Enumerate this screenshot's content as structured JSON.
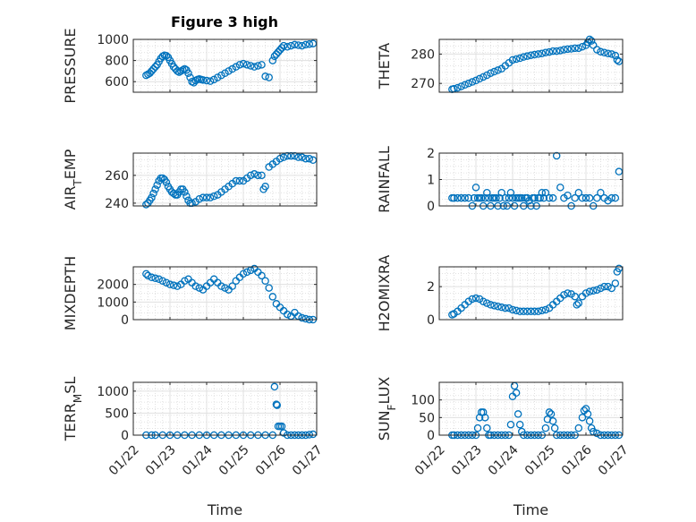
{
  "figure_title": "Figure 3 high",
  "x_ticks": [
    "01/22",
    "01/23",
    "01/24",
    "01/25",
    "01/26",
    "01/27"
  ],
  "marker_color": "#0072BD",
  "chart_data": [
    {
      "type": "scatter",
      "ylabel": "PRESSURE",
      "ylim": [
        500,
        1000
      ],
      "yticks": [
        600,
        800,
        1000
      ],
      "xlabel": "",
      "xlim": [
        0,
        5
      ],
      "grid": true,
      "x": [
        0.35,
        0.4,
        0.45,
        0.5,
        0.55,
        0.6,
        0.65,
        0.7,
        0.75,
        0.8,
        0.85,
        0.9,
        0.95,
        1.0,
        1.05,
        1.1,
        1.15,
        1.2,
        1.25,
        1.3,
        1.35,
        1.4,
        1.45,
        1.5,
        1.55,
        1.6,
        1.65,
        1.7,
        1.75,
        1.8,
        1.85,
        1.9,
        2.0,
        2.1,
        2.2,
        2.3,
        2.4,
        2.5,
        2.6,
        2.7,
        2.8,
        2.9,
        3.0,
        3.1,
        3.2,
        3.3,
        3.4,
        3.5,
        3.6,
        3.7,
        3.8,
        3.85,
        3.9,
        3.95,
        4.0,
        4.05,
        4.1,
        4.2,
        4.3,
        4.4,
        4.5,
        4.6,
        4.7,
        4.8,
        4.9
      ],
      "y": [
        660,
        670,
        680,
        700,
        720,
        740,
        760,
        790,
        820,
        840,
        850,
        845,
        830,
        800,
        770,
        740,
        720,
        700,
        690,
        700,
        710,
        720,
        710,
        680,
        640,
        600,
        590,
        610,
        620,
        625,
        620,
        615,
        610,
        605,
        620,
        640,
        660,
        680,
        700,
        720,
        740,
        760,
        770,
        760,
        750,
        740,
        750,
        760,
        650,
        640,
        800,
        840,
        860,
        880,
        900,
        920,
        940,
        930,
        940,
        950,
        945,
        940,
        950,
        955,
        960
      ]
    },
    {
      "type": "scatter",
      "ylabel": "THETA",
      "ylim": [
        267,
        285
      ],
      "yticks": [
        270,
        280
      ],
      "xlabel": "",
      "xlim": [
        0,
        5
      ],
      "grid": true,
      "x": [
        0.35,
        0.4,
        0.5,
        0.6,
        0.7,
        0.8,
        0.9,
        1.0,
        1.1,
        1.2,
        1.3,
        1.4,
        1.5,
        1.6,
        1.7,
        1.8,
        1.9,
        2.0,
        2.1,
        2.2,
        2.3,
        2.4,
        2.5,
        2.6,
        2.7,
        2.8,
        2.9,
        3.0,
        3.1,
        3.2,
        3.3,
        3.4,
        3.5,
        3.6,
        3.7,
        3.8,
        3.9,
        4.0,
        4.05,
        4.1,
        4.15,
        4.2,
        4.3,
        4.4,
        4.5,
        4.6,
        4.7,
        4.8,
        4.85,
        4.9
      ],
      "y": [
        268,
        268.2,
        268.5,
        269,
        269.5,
        270,
        270.5,
        271,
        271.6,
        272.2,
        272.8,
        273.5,
        274,
        274.5,
        275,
        276,
        277,
        278,
        278.3,
        278.6,
        279,
        279.3,
        279.6,
        279.8,
        280,
        280.2,
        280.5,
        280.7,
        281,
        281,
        281.2,
        281.5,
        281.7,
        281.8,
        282,
        282,
        282.5,
        283,
        284,
        285,
        284.5,
        283,
        281.5,
        280.8,
        280.5,
        280.2,
        280,
        279.5,
        278,
        277.5
      ]
    },
    {
      "type": "scatter",
      "ylabel": "AIR",
      "ylabel_sub": "T",
      "ylabel_rest": "EMP",
      "ylim": [
        238,
        276
      ],
      "yticks": [
        240,
        260
      ],
      "xlabel": "",
      "xlim": [
        0,
        5
      ],
      "grid": true,
      "x": [
        0.35,
        0.4,
        0.45,
        0.5,
        0.55,
        0.6,
        0.65,
        0.7,
        0.75,
        0.8,
        0.85,
        0.9,
        0.95,
        1.0,
        1.05,
        1.1,
        1.15,
        1.2,
        1.25,
        1.3,
        1.35,
        1.4,
        1.45,
        1.5,
        1.55,
        1.6,
        1.7,
        1.8,
        1.9,
        2.0,
        2.1,
        2.2,
        2.3,
        2.4,
        2.5,
        2.6,
        2.7,
        2.8,
        2.9,
        3.0,
        3.1,
        3.2,
        3.3,
        3.4,
        3.5,
        3.55,
        3.6,
        3.7,
        3.8,
        3.9,
        4.0,
        4.1,
        4.2,
        4.3,
        4.4,
        4.5,
        4.6,
        4.7,
        4.8,
        4.9
      ],
      "y": [
        239,
        240,
        242,
        244,
        247,
        250,
        253,
        256,
        258,
        258,
        257,
        255,
        252,
        250,
        248,
        247,
        246,
        246,
        248,
        250,
        250,
        248,
        245,
        242,
        240,
        240,
        241,
        243,
        244,
        244,
        244,
        245,
        246,
        248,
        250,
        252,
        254,
        256,
        256,
        256,
        258,
        260,
        261,
        260,
        260,
        250,
        252,
        266,
        268,
        270,
        272,
        273,
        274,
        274,
        274,
        273,
        273,
        272,
        272,
        271
      ]
    },
    {
      "type": "scatter",
      "ylabel": "RAINFALL",
      "ylim": [
        0,
        2
      ],
      "yticks": [
        0,
        1,
        2
      ],
      "xlabel": "",
      "xlim": [
        0,
        5
      ],
      "grid": true,
      "x": [
        0.35,
        0.4,
        0.5,
        0.6,
        0.7,
        0.8,
        0.9,
        0.95,
        1.0,
        1.05,
        1.1,
        1.15,
        1.2,
        1.25,
        1.3,
        1.35,
        1.4,
        1.45,
        1.5,
        1.55,
        1.6,
        1.65,
        1.7,
        1.75,
        1.8,
        1.85,
        1.9,
        1.95,
        2.0,
        2.05,
        2.1,
        2.15,
        2.2,
        2.25,
        2.3,
        2.35,
        2.4,
        2.45,
        2.5,
        2.55,
        2.6,
        2.65,
        2.7,
        2.75,
        2.8,
        2.85,
        2.9,
        3.0,
        3.1,
        3.2,
        3.3,
        3.4,
        3.5,
        3.6,
        3.7,
        3.8,
        3.9,
        4.0,
        4.1,
        4.2,
        4.3,
        4.4,
        4.5,
        4.6,
        4.7,
        4.8,
        4.9
      ],
      "y": [
        0.3,
        0.3,
        0.3,
        0.3,
        0.3,
        0.3,
        0,
        0.3,
        0.7,
        0.3,
        0.3,
        0.3,
        0,
        0.3,
        0.5,
        0.3,
        0,
        0.3,
        0.3,
        0.3,
        0,
        0.3,
        0.5,
        0,
        0.3,
        0,
        0.3,
        0.5,
        0.3,
        0,
        0.3,
        0.3,
        0.3,
        0.3,
        0,
        0.3,
        0.3,
        0.2,
        0,
        0.3,
        0.3,
        0,
        0.3,
        0.3,
        0.5,
        0.3,
        0.5,
        0.3,
        0.3,
        1.9,
        0.7,
        0.3,
        0.4,
        0,
        0.3,
        0.5,
        0.3,
        0.3,
        0.3,
        0,
        0.3,
        0.5,
        0.3,
        0.2,
        0.3,
        0.3,
        1.3
      ]
    },
    {
      "type": "scatter",
      "ylabel": "MIXDEPTH",
      "ylim": [
        0,
        3000
      ],
      "yticks": [
        0,
        1000,
        2000
      ],
      "xlabel": "",
      "xlim": [
        0,
        5
      ],
      "grid": true,
      "x": [
        0.35,
        0.4,
        0.5,
        0.6,
        0.7,
        0.8,
        0.9,
        1.0,
        1.1,
        1.2,
        1.3,
        1.4,
        1.5,
        1.6,
        1.7,
        1.8,
        1.9,
        2.0,
        2.1,
        2.2,
        2.3,
        2.4,
        2.5,
        2.6,
        2.7,
        2.8,
        2.9,
        3.0,
        3.1,
        3.2,
        3.3,
        3.4,
        3.5,
        3.6,
        3.7,
        3.8,
        3.9,
        4.0,
        4.1,
        4.2,
        4.3,
        4.4,
        4.5,
        4.6,
        4.7,
        4.8,
        4.9
      ],
      "y": [
        2600,
        2500,
        2400,
        2350,
        2300,
        2200,
        2100,
        2000,
        1950,
        1900,
        2000,
        2200,
        2300,
        2100,
        1900,
        1800,
        1700,
        1900,
        2100,
        2300,
        2100,
        1900,
        1800,
        1700,
        1900,
        2200,
        2400,
        2600,
        2700,
        2800,
        2900,
        2700,
        2500,
        2200,
        1800,
        1300,
        900,
        700,
        500,
        300,
        200,
        400,
        200,
        100,
        50,
        0,
        0
      ]
    },
    {
      "type": "scatter",
      "ylabel": "H2OMIXRA",
      "ylim": [
        0,
        3.2
      ],
      "yticks": [
        0,
        2
      ],
      "xlabel": "",
      "xlim": [
        0,
        5
      ],
      "grid": true,
      "x": [
        0.35,
        0.4,
        0.5,
        0.6,
        0.7,
        0.8,
        0.9,
        1.0,
        1.1,
        1.2,
        1.3,
        1.4,
        1.5,
        1.6,
        1.7,
        1.8,
        1.9,
        2.0,
        2.1,
        2.2,
        2.3,
        2.4,
        2.5,
        2.6,
        2.7,
        2.8,
        2.9,
        3.0,
        3.1,
        3.2,
        3.3,
        3.4,
        3.5,
        3.6,
        3.7,
        3.75,
        3.8,
        3.9,
        4.0,
        4.1,
        4.2,
        4.3,
        4.4,
        4.5,
        4.6,
        4.7,
        4.8,
        4.85,
        4.9
      ],
      "y": [
        0.3,
        0.35,
        0.5,
        0.7,
        0.9,
        1.1,
        1.25,
        1.3,
        1.25,
        1.1,
        1.0,
        0.9,
        0.85,
        0.8,
        0.75,
        0.7,
        0.7,
        0.6,
        0.55,
        0.5,
        0.5,
        0.5,
        0.5,
        0.5,
        0.5,
        0.55,
        0.6,
        0.7,
        0.9,
        1.1,
        1.3,
        1.5,
        1.6,
        1.55,
        1.4,
        0.9,
        1.0,
        1.4,
        1.6,
        1.7,
        1.75,
        1.8,
        1.9,
        2.0,
        2.0,
        1.9,
        2.2,
        2.9,
        3.1
      ]
    },
    {
      "type": "scatter",
      "ylabel": "TERR",
      "ylabel_sub": "M",
      "ylabel_rest": "SL",
      "ylim": [
        0,
        1200
      ],
      "yticks": [
        0,
        500,
        1000
      ],
      "xlabel": "Time",
      "xlim": [
        0,
        5
      ],
      "grid": true,
      "x": [
        0.35,
        0.5,
        0.6,
        0.8,
        1.0,
        1.2,
        1.4,
        1.6,
        1.8,
        2.0,
        2.2,
        2.4,
        2.6,
        2.8,
        3.0,
        3.2,
        3.4,
        3.6,
        3.8,
        3.85,
        3.9,
        3.92,
        3.95,
        4.0,
        4.05,
        4.1,
        4.2,
        4.3,
        4.4,
        4.5,
        4.6,
        4.7,
        4.8,
        4.9
      ],
      "y": [
        0,
        0,
        0,
        0,
        0,
        0,
        0,
        0,
        0,
        0,
        0,
        0,
        0,
        0,
        0,
        0,
        0,
        0,
        0,
        1100,
        700,
        680,
        200,
        200,
        200,
        50,
        0,
        0,
        0,
        0,
        0,
        0,
        10,
        20
      ]
    },
    {
      "type": "scatter",
      "ylabel": "SUN",
      "ylabel_sub": "F",
      "ylabel_rest": "LUX",
      "ylim": [
        0,
        150
      ],
      "yticks": [
        0,
        50,
        100
      ],
      "xlabel": "Time",
      "xlim": [
        0,
        5
      ],
      "grid": true,
      "x": [
        0.35,
        0.4,
        0.5,
        0.6,
        0.7,
        0.8,
        0.9,
        1.0,
        1.05,
        1.1,
        1.15,
        1.2,
        1.25,
        1.3,
        1.35,
        1.4,
        1.5,
        1.6,
        1.7,
        1.8,
        1.9,
        1.95,
        2.0,
        2.05,
        2.1,
        2.15,
        2.2,
        2.25,
        2.3,
        2.4,
        2.5,
        2.6,
        2.7,
        2.8,
        2.9,
        2.95,
        3.0,
        3.05,
        3.1,
        3.15,
        3.2,
        3.3,
        3.4,
        3.5,
        3.6,
        3.7,
        3.8,
        3.9,
        3.95,
        4.0,
        4.05,
        4.1,
        4.15,
        4.2,
        4.3,
        4.4,
        4.5,
        4.6,
        4.7,
        4.8,
        4.9
      ],
      "y": [
        0,
        0,
        0,
        0,
        0,
        0,
        0,
        0,
        20,
        50,
        65,
        65,
        50,
        20,
        0,
        0,
        0,
        0,
        0,
        0,
        0,
        30,
        110,
        140,
        120,
        60,
        30,
        10,
        0,
        0,
        0,
        0,
        0,
        0,
        20,
        45,
        65,
        60,
        40,
        20,
        0,
        0,
        0,
        0,
        0,
        0,
        20,
        50,
        70,
        75,
        60,
        40,
        20,
        10,
        5,
        0,
        0,
        0,
        0,
        0,
        0
      ]
    }
  ]
}
